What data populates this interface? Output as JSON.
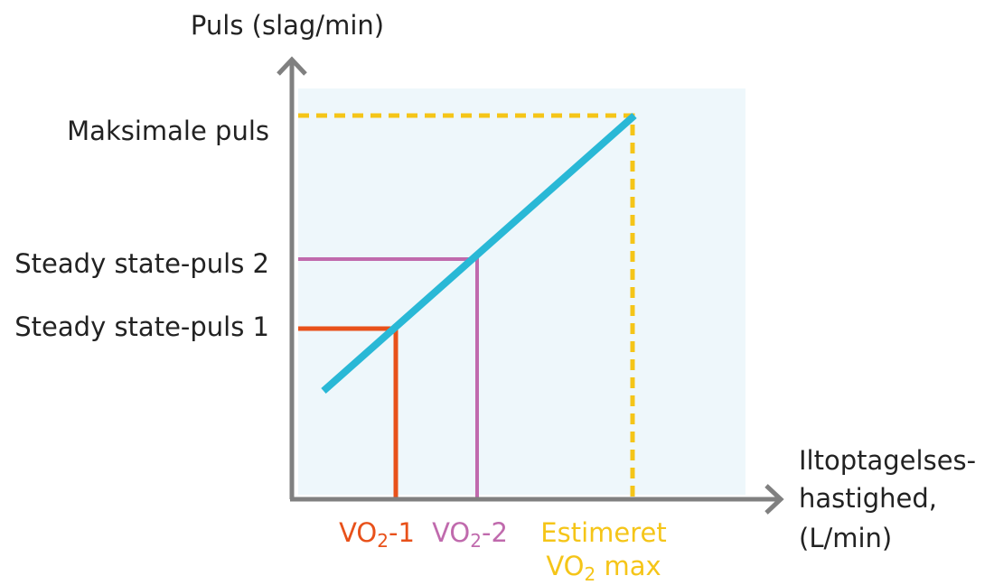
{
  "y_axis_title": "Puls (slag/min)",
  "y_labels": [
    "Maksimale puls",
    "Steady state-puls 2",
    "Steady state-puls 1"
  ],
  "x_axis_title": [
    "Iltoptagelses-",
    "hastighed,",
    "(L/min)"
  ],
  "x_labels": [
    {
      "lines": [
        {
          "main": "VO",
          "sub": "2",
          "rest": "-1"
        }
      ]
    },
    {
      "lines": [
        {
          "main": "VO",
          "sub": "2",
          "rest": "-2"
        }
      ]
    },
    {
      "lines": [
        {
          "main": "Estimeret"
        },
        {
          "main": "VO",
          "sub": "2",
          "rest": " max"
        }
      ]
    }
  ]
}
